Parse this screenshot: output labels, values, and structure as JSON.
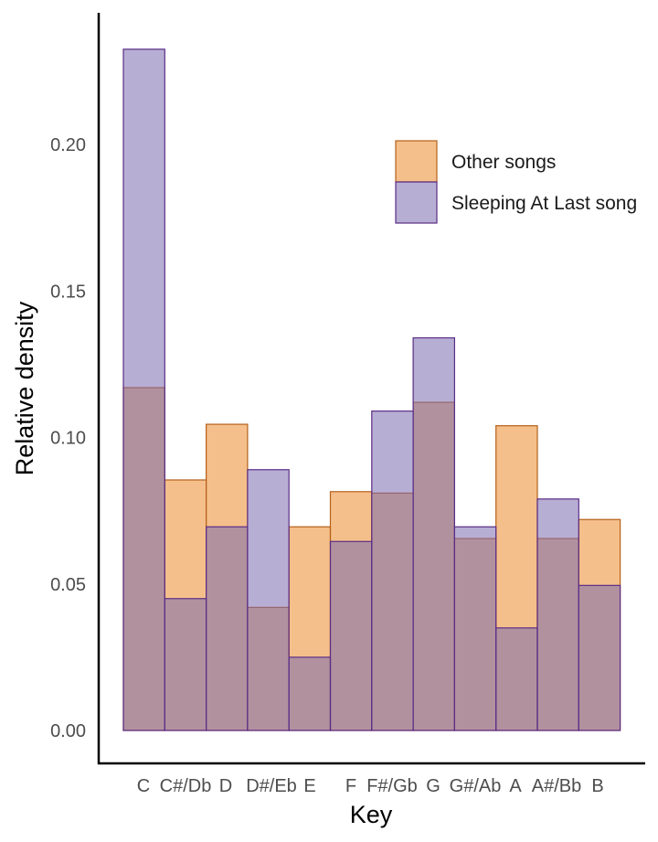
{
  "chart_data": {
    "type": "bar",
    "title": "",
    "xlabel": "Key",
    "ylabel": "Relative density",
    "categories": [
      "C",
      "C#/Db",
      "D",
      "D#/Eb",
      "E",
      "F",
      "F#/Gb",
      "G",
      "G#/Ab",
      "A",
      "A#/Bb",
      "B"
    ],
    "ylim": [
      0,
      0.24
    ],
    "yticks": [
      "0.00",
      "0.05",
      "0.10",
      "0.15",
      "0.20"
    ],
    "grid": false,
    "legend_position": "top-right",
    "bar_mode": "overlay",
    "series": [
      {
        "name": "Other songs",
        "fill": "#eb8a2c",
        "stroke": "#b5601a",
        "values": [
          0.117,
          0.0855,
          0.1045,
          0.042,
          0.0695,
          0.0815,
          0.081,
          0.112,
          0.0655,
          0.104,
          0.0655,
          0.072
        ]
      },
      {
        "name": "Sleeping At Last song",
        "fill": "#7b6bb0",
        "stroke": "#5a2d86",
        "values": [
          0.2325,
          0.045,
          0.0695,
          0.089,
          0.025,
          0.0645,
          0.109,
          0.134,
          0.0695,
          0.035,
          0.079,
          0.0495
        ]
      }
    ]
  }
}
